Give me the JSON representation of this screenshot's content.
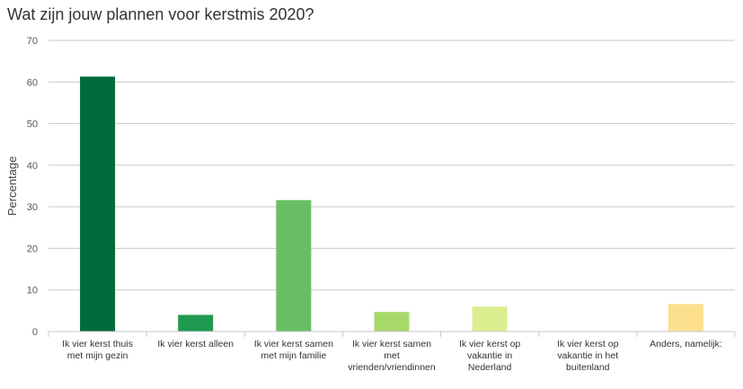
{
  "title": "Wat zijn jouw plannen voor kerstmis 2020?",
  "chart_data": {
    "type": "bar",
    "title": "Wat zijn jouw plannen voor kerstmis 2020?",
    "ylabel": "Percentage",
    "xlabel": "",
    "ylim": [
      0,
      70
    ],
    "yticks": [
      0,
      10,
      20,
      30,
      40,
      50,
      60,
      70
    ],
    "grid": true,
    "categories": [
      [
        "Ik vier kerst thuis",
        "met mijn gezin"
      ],
      [
        "Ik vier kerst alleen"
      ],
      [
        "Ik vier kerst samen",
        "met mijn familie"
      ],
      [
        "Ik vier kerst samen",
        "met",
        "vrienden/vriendinnen"
      ],
      [
        "Ik vier kerst op",
        "vakantie in",
        "Nederland"
      ],
      [
        "Ik vier kerst op",
        "vakantie in het",
        "buitenland"
      ],
      [
        "Anders, namelijk:"
      ]
    ],
    "values": [
      61.3,
      4.0,
      31.6,
      4.7,
      6.0,
      0,
      6.6
    ],
    "colors": [
      "#006b3a",
      "#1e9a50",
      "#68bf63",
      "#a7d86a",
      "#dbee8f",
      "#f2f0a0",
      "#fde08d"
    ]
  }
}
